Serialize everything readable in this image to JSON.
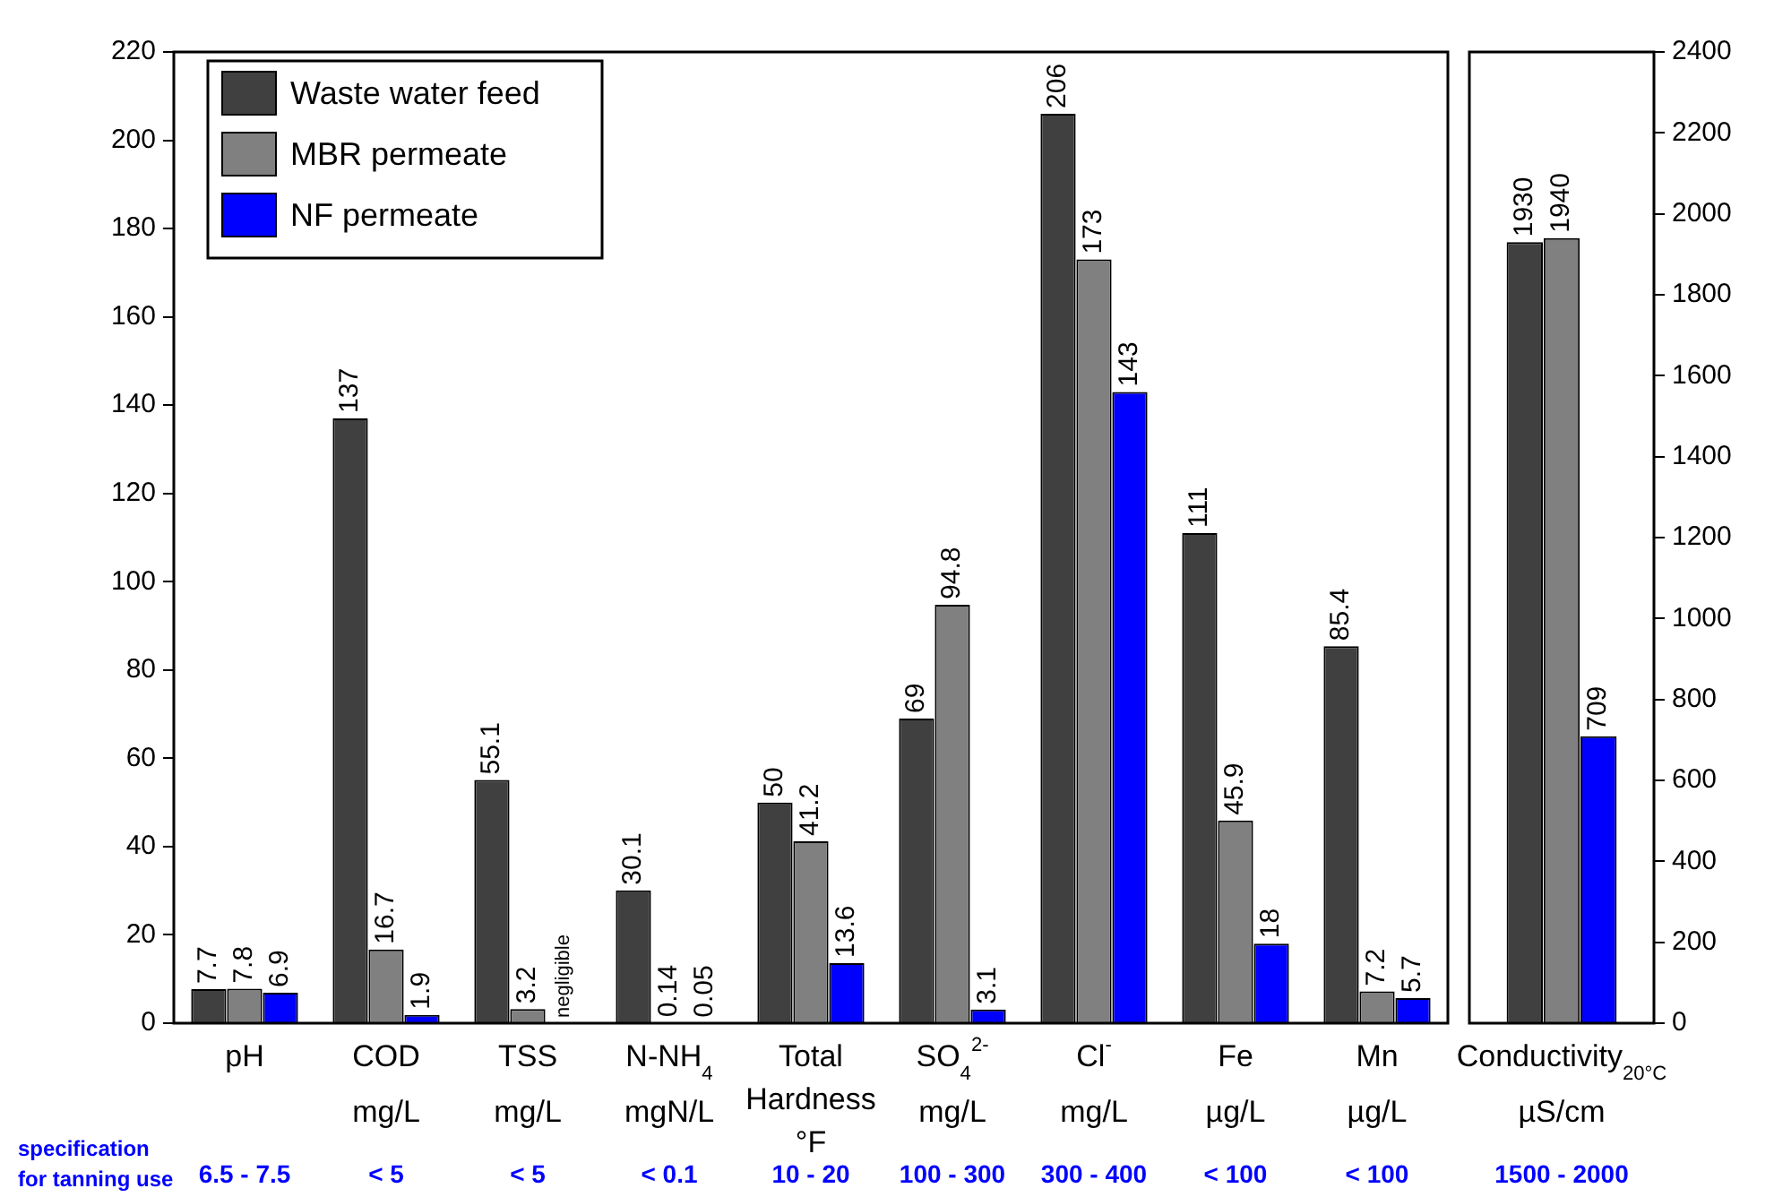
{
  "chart_data": [
    {
      "type": "bar",
      "categories": [
        "pH",
        "COD\nmg/L",
        "TSS\nmg/L",
        "N-NH$_{4}$\nmgN/L",
        "Total\nHardness\n°F",
        "SO$_{4}$$^{2-}$\nmg/L",
        "Cl$^{-}$\nmg/L",
        "Fe\nµg/L",
        "Mn\nµg/L"
      ],
      "series": [
        {
          "name": "Waste water feed",
          "color": "#404040",
          "values": [
            7.7,
            137,
            55.1,
            30.1,
            50,
            69,
            206,
            111,
            85.4
          ],
          "value_labels": [
            "7.7",
            "137",
            "55.1",
            "30.1",
            "50",
            "69",
            "206",
            "111",
            "85.4"
          ]
        },
        {
          "name": "MBR permeate",
          "color": "#808080",
          "values": [
            7.8,
            16.7,
            3.2,
            0.14,
            41.2,
            94.8,
            173,
            45.9,
            7.2
          ],
          "value_labels": [
            "7.8",
            "16.7",
            "3.2",
            "0.14",
            "41.2",
            "94.8",
            "173",
            "45.9",
            "7.2"
          ]
        },
        {
          "name": "NF permeate",
          "color": "#0000ff",
          "values": [
            6.9,
            1.9,
            null,
            0.05,
            13.6,
            3.1,
            143,
            18,
            5.7
          ],
          "value_labels": [
            "6.9",
            "1.9",
            "negligible",
            "0.05",
            "13.6",
            "3.1",
            "143",
            "18",
            "5.7"
          ]
        }
      ],
      "ylim": [
        0,
        220
      ],
      "yticks": [
        0,
        20,
        40,
        60,
        80,
        100,
        120,
        140,
        160,
        180,
        200,
        220
      ],
      "grid": false,
      "legend": "top left",
      "annotations": [
        "specification\nfor tanning use",
        "6.5 - 7.5",
        "< 5",
        "< 5",
        "< 0.1",
        "10 - 20",
        "100 - 300",
        "300 - 400",
        "< 100",
        "< 100"
      ]
    },
    {
      "type": "bar",
      "categories": [
        "Conductivity$_{20°C}$\nµS/cm"
      ],
      "series": [
        {
          "color": "#404040",
          "axis": "y2",
          "values": [
            1930
          ],
          "value_labels": [
            "1930"
          ]
        },
        {
          "color": "#808080",
          "axis": "y2",
          "values": [
            1940
          ],
          "value_labels": [
            "1940"
          ]
        },
        {
          "color": "#0000ff",
          "axis": "y2",
          "values": [
            709
          ],
          "value_labels": [
            "709"
          ]
        }
      ],
      "y2lim": [
        0,
        2400
      ],
      "y2ticks": [
        0,
        200,
        400,
        600,
        800,
        1000,
        1200,
        1400,
        1600,
        1800,
        2000,
        2200,
        2400
      ],
      "grid": false,
      "annotations": [
        "1500 - 2000"
      ]
    }
  ]
}
